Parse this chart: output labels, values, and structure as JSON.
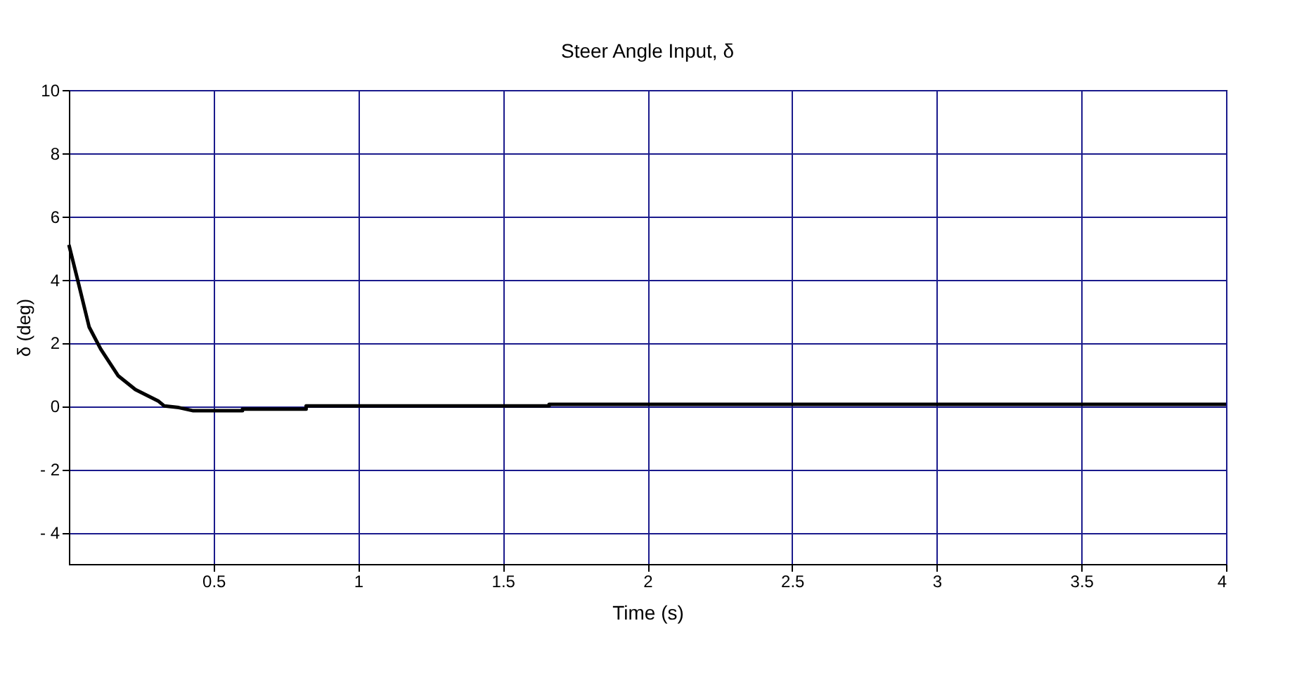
{
  "chart_data": {
    "type": "line",
    "title": "Steer Angle Input, δ",
    "xlabel": "Time (s)",
    "ylabel": "δ (deg)",
    "x": [
      0,
      0.03,
      0.07,
      0.11,
      0.17,
      0.23,
      0.31,
      0.33,
      0.38,
      0.43,
      0.6,
      0.6,
      0.82,
      0.82,
      1.66,
      1.66,
      4
    ],
    "series": [
      {
        "color": "#000000",
        "values": [
          5.1,
          4.0,
          2.5,
          1.8,
          0.96,
          0.52,
          0.15,
          0,
          -0.05,
          -0.15,
          -0.15,
          -0.1,
          -0.1,
          0,
          0,
          0.05,
          0.05
        ]
      }
    ],
    "xlim": [
      0,
      4
    ],
    "xticks": [
      0.5,
      1,
      1.5,
      2,
      2.5,
      3,
      3.5,
      4
    ],
    "ylim": [
      -5,
      10
    ],
    "yticks": [
      {
        "value": -4,
        "label": "- 4"
      },
      {
        "value": -2,
        "label": "- 2"
      },
      0,
      2,
      4,
      6,
      8,
      10
    ],
    "grid": true,
    "marker": "none",
    "line_style": "solid"
  }
}
